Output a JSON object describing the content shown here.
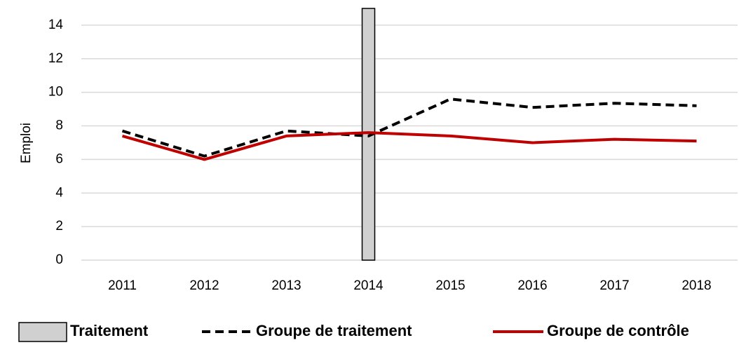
{
  "chart_data": {
    "type": "line",
    "y_label": "Emploi",
    "categories": [
      "2011",
      "2012",
      "2013",
      "2014",
      "2015",
      "2016",
      "2017",
      "2018"
    ],
    "series": [
      {
        "name": "Traitement",
        "type": "bar",
        "color": "#d0d0d0",
        "values": [
          null,
          null,
          null,
          15,
          null,
          null,
          null,
          null
        ]
      },
      {
        "name": "Groupe de traitement",
        "type": "line",
        "dashed": true,
        "color": "#000000",
        "values": [
          7.7,
          6.2,
          7.7,
          7.4,
          9.6,
          9.1,
          9.35,
          9.2
        ]
      },
      {
        "name": "Groupe de contrôle",
        "type": "line",
        "dashed": false,
        "color": "#c00000",
        "values": [
          7.4,
          6.0,
          7.4,
          7.6,
          7.4,
          7.0,
          7.2,
          7.1
        ]
      }
    ],
    "ylim": [
      0,
      15
    ],
    "yticks": [
      0,
      2,
      4,
      6,
      8,
      10,
      12,
      14
    ],
    "grid": true,
    "legend": "bottom"
  }
}
